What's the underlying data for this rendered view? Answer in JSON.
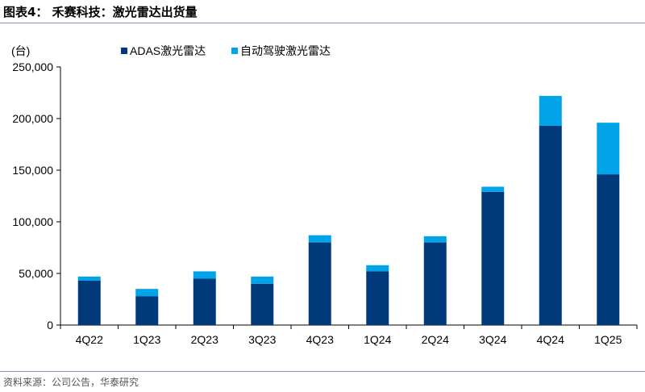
{
  "figure": {
    "title": "图表4：   禾赛科技：激光雷达出货量",
    "source": "资料来源：公司公告，华泰研究"
  },
  "chart_data": {
    "type": "bar",
    "stacked": true,
    "unit_label": "(台)",
    "categories": [
      "4Q22",
      "1Q23",
      "2Q23",
      "3Q23",
      "4Q23",
      "1Q24",
      "2Q24",
      "3Q24",
      "4Q24",
      "1Q25"
    ],
    "series": [
      {
        "name": "ADAS激光雷达",
        "color": "#003a7a",
        "values": [
          43000,
          28000,
          45000,
          40000,
          80000,
          52000,
          80000,
          129000,
          193000,
          146000
        ]
      },
      {
        "name": "自动驾驶激光雷达",
        "color": "#00a3e8",
        "values": [
          4000,
          7000,
          7000,
          7000,
          7000,
          6000,
          6000,
          5000,
          29000,
          50000
        ]
      }
    ],
    "ylim": [
      0,
      250000
    ],
    "yticks": [
      "0",
      "50,000",
      "100,000",
      "150,000",
      "200,000",
      "250,000"
    ],
    "ytick_values": [
      0,
      50000,
      100000,
      150000,
      200000,
      250000
    ],
    "grid": false,
    "legend_position": "top"
  }
}
